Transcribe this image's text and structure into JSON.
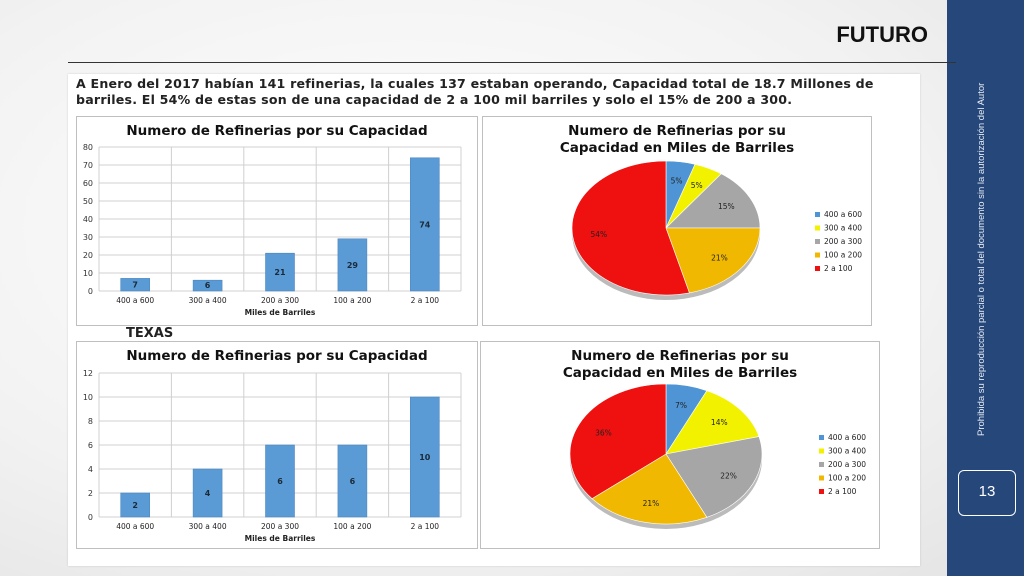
{
  "slide": {
    "title": "FUTURO",
    "intro": "A Enero del 2017 habían 141 refinerias, la cuales 137 estaban operando, Capacidad total de 18.7 Millones de barriles. El 54% de estas son de una capacidad de 2 a 100 mil barriles y solo el 15% de 200 a 300.",
    "section_label": "TEXAS",
    "side_note": "Prohibida su reproducción parcial o total del documento sin la autorización del Autor",
    "page_number": "13",
    "colors": {
      "sidebar": "#25477a",
      "bar": "#5b9bd5"
    }
  },
  "chart_data": [
    {
      "type": "bar",
      "title": "Numero de Refinerias por su Capacidad",
      "xlabel": "Miles de Barriles",
      "ylabel": "",
      "categories": [
        "400 a 600",
        "300 a 400",
        "200 a 300",
        "100 a 200",
        "2 a 100"
      ],
      "values": [
        7,
        6,
        21,
        29,
        74
      ],
      "ylim": [
        0,
        80
      ],
      "yticks": [
        0,
        10,
        20,
        30,
        40,
        50,
        60,
        70,
        80
      ],
      "grid": true
    },
    {
      "type": "pie",
      "title": "Numero de Refinerias por su Capacidad en Miles de Barriles",
      "labels": [
        "400 a 600",
        "300 a 400",
        "200 a 300",
        "100 a 200",
        "2 a 100"
      ],
      "values": [
        5,
        5,
        15,
        21,
        54
      ],
      "value_labels": [
        "5%",
        "5%",
        "15%",
        "21%",
        "54%"
      ],
      "colors": [
        "#4f94d4",
        "#f2f200",
        "#a6a6a6",
        "#f0b800",
        "#ef1010"
      ],
      "legend": "right"
    },
    {
      "type": "bar",
      "title": "Numero de Refinerias por su Capacidad",
      "xlabel": "Miles de Barriles",
      "ylabel": "",
      "categories": [
        "400 a 600",
        "300 a 400",
        "200 a 300",
        "100 a 200",
        "2 a 100"
      ],
      "values": [
        2,
        4,
        6,
        6,
        10
      ],
      "ylim": [
        0,
        12
      ],
      "yticks": [
        0,
        2,
        4,
        6,
        8,
        10,
        12
      ],
      "grid": true
    },
    {
      "type": "pie",
      "title": "Numero de Refinerias por su Capacidad en Miles de Barriles",
      "labels": [
        "400 a 600",
        "300 a 400",
        "200 a 300",
        "100 a 200",
        "2 a 100"
      ],
      "values": [
        7,
        14,
        22,
        21,
        36
      ],
      "value_labels": [
        "7%",
        "14%",
        "22%",
        "21%",
        "36%"
      ],
      "colors": [
        "#4f94d4",
        "#f2f200",
        "#a6a6a6",
        "#f0b800",
        "#ef1010"
      ],
      "legend": "right"
    }
  ]
}
